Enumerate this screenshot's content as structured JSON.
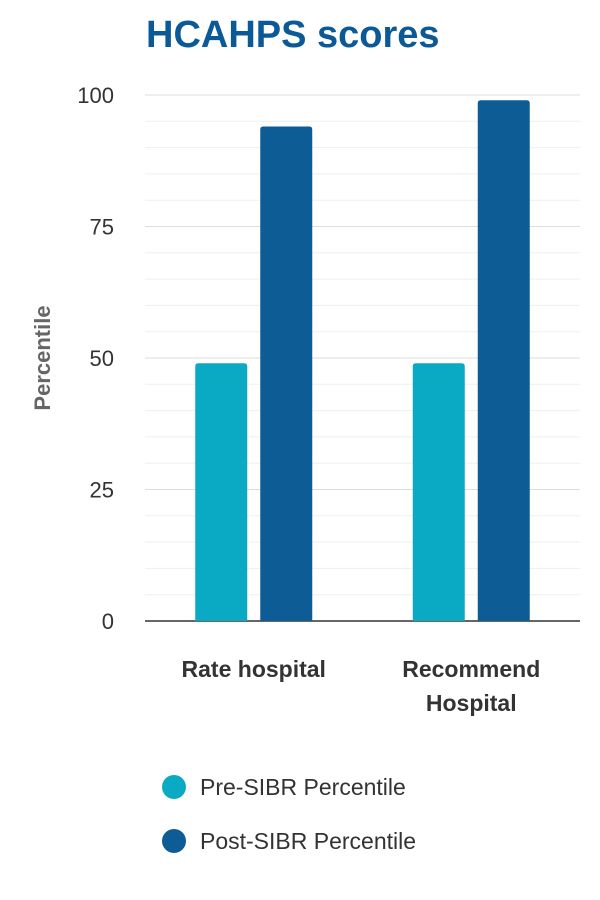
{
  "chart_data": {
    "type": "bar",
    "title": "HCAHPS scores",
    "ylabel": "Percentile",
    "xlabel": "",
    "ylim": [
      0,
      100
    ],
    "yticks": [
      0,
      25,
      50,
      75,
      100
    ],
    "categories": [
      "Rate hospital",
      "Recommend Hospital"
    ],
    "series": [
      {
        "name": "Pre-SIBR Percentile",
        "values": [
          49,
          49
        ],
        "color": "#0aa9c4"
      },
      {
        "name": "Post-SIBR Percentile",
        "values": [
          94,
          99
        ],
        "color": "#0e5c96"
      }
    ],
    "grid": true,
    "legend": "bottom"
  }
}
